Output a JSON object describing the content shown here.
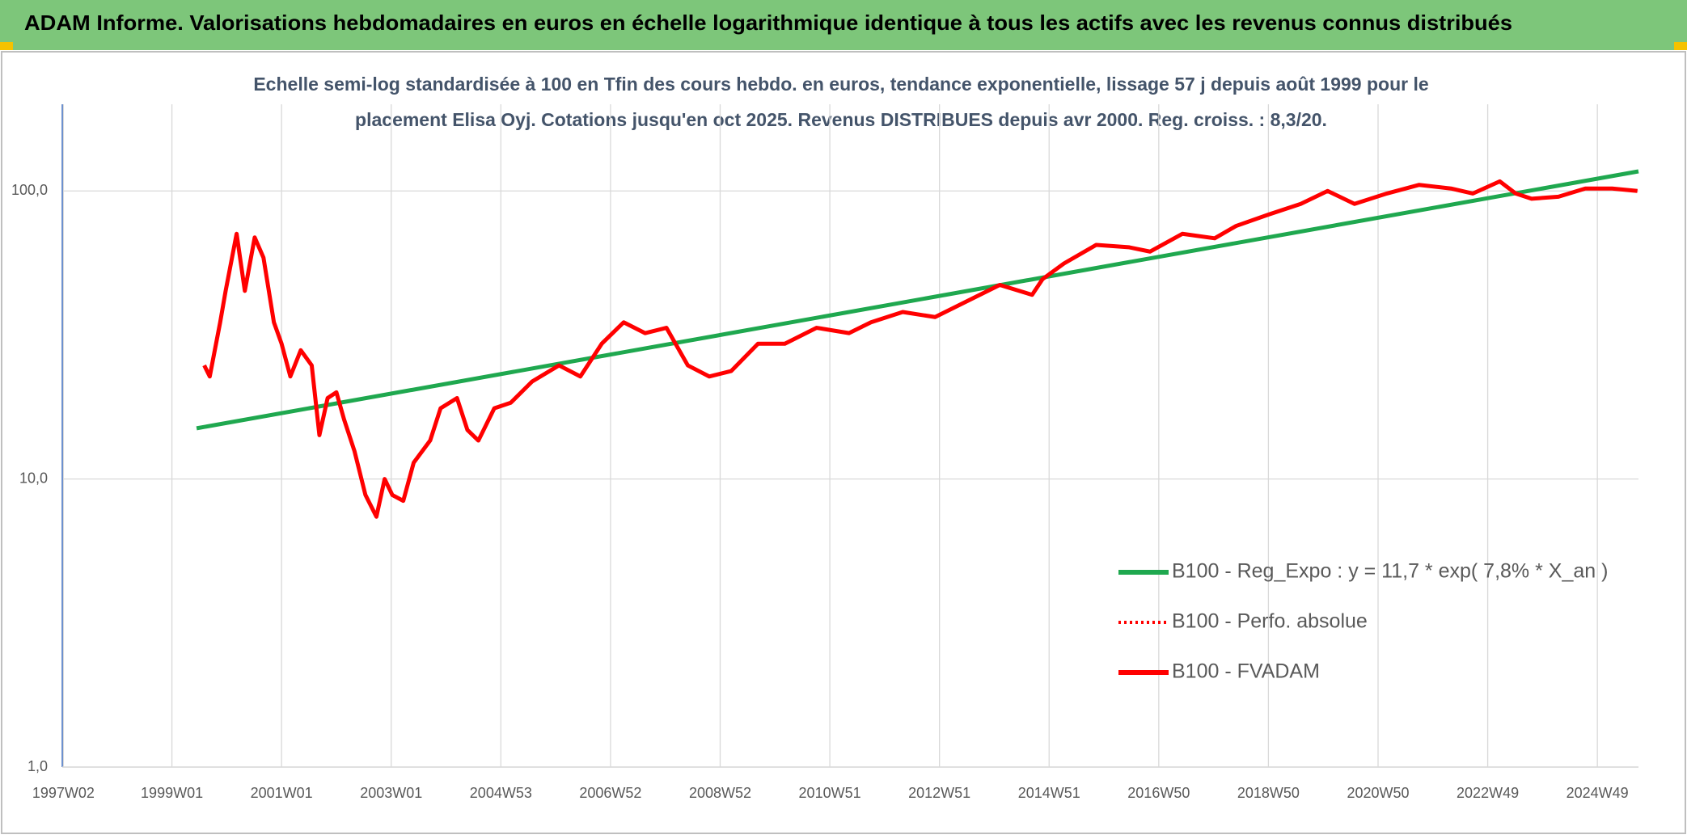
{
  "chart_data": {
    "type": "line",
    "title": "ADAM Informe. Valorisations hebdomadaires en euros en échelle logarithmique identique à tous les actifs avec les revenus connus distribués",
    "subtitle": [
      "Echelle semi-log standardisée à 100 en Tfin des cours hebdo. en euros, tendance exponentielle, lissage 57 j depuis août 1999 pour le",
      "placement Elisa Oyj. Cotations jusqu'en oct 2025. Revenus DISTRIBUES depuis avr 2000. Reg. croiss. : 8,3/20."
    ],
    "xlim": [
      1997,
      2025.75
    ],
    "xticks": [
      {
        "value": 1997.02,
        "label": "1997W02"
      },
      {
        "value": 1999,
        "label": "1999W01"
      },
      {
        "value": 2001,
        "label": "2001W01"
      },
      {
        "value": 2003,
        "label": "2003W01"
      },
      {
        "value": 2005,
        "label": "2004W53"
      },
      {
        "value": 2007,
        "label": "2006W52"
      },
      {
        "value": 2009,
        "label": "2008W52"
      },
      {
        "value": 2011,
        "label": "2010W51"
      },
      {
        "value": 2013,
        "label": "2012W51"
      },
      {
        "value": 2015,
        "label": "2014W51"
      },
      {
        "value": 2017,
        "label": "2016W50"
      },
      {
        "value": 2019,
        "label": "2018W50"
      },
      {
        "value": 2021,
        "label": "2020W50"
      },
      {
        "value": 2023,
        "label": "2022W49"
      },
      {
        "value": 2025,
        "label": "2024W49"
      }
    ],
    "ylim": [
      1,
      200
    ],
    "log_y": true,
    "grid": true,
    "yticks": [
      {
        "value": 1,
        "label": "1,0"
      },
      {
        "value": 10,
        "label": "10,0"
      },
      {
        "value": 100,
        "label": "100,0"
      }
    ],
    "legend": "right",
    "series": [
      {
        "name": "B100 - Reg_Expo : y = 11,7 * exp( 7,8% *  X_an )",
        "color": "#1fa84f",
        "style": "solid",
        "x": [
          1999.45,
          2025.75
        ],
        "values": [
          15,
          117
        ]
      },
      {
        "name": "B100 - Perfo. absolue",
        "color": "#ff0000",
        "style": "dotted",
        "x": [
          1999.59,
          1999.69,
          1999.88,
          1999.98,
          2000.18,
          2000.33,
          2000.51,
          2000.67,
          2000.86,
          2001.0,
          2001.16,
          2001.35,
          2001.55,
          2001.69,
          2001.84,
          2002.0,
          2002.14,
          2002.33,
          2002.53,
          2002.73,
          2002.88,
          2003.02,
          2003.22,
          2003.41,
          2003.71,
          2003.9,
          2004.2,
          2004.39,
          2004.59,
          2004.88,
          2005.18,
          2005.57,
          2006.06,
          2006.45,
          2006.84,
          2007.24,
          2007.63,
          2008.02,
          2008.41,
          2008.8,
          2009.2,
          2009.69,
          2010.18,
          2010.76,
          2011.35,
          2011.75,
          2012.33,
          2012.92,
          2013.51,
          2014.1,
          2014.69,
          2014.88,
          2015.27,
          2015.86,
          2016.45,
          2016.84,
          2017.43,
          2018.02,
          2018.41,
          2019.0,
          2019.59,
          2020.08,
          2020.57,
          2021.16,
          2021.75,
          2022.33,
          2022.73,
          2023.22,
          2023.51,
          2023.8,
          2024.29,
          2024.78,
          2025.27,
          2025.73
        ],
        "values": [
          24.8,
          22.7,
          35,
          45,
          71,
          45,
          69,
          58.7,
          35,
          29.5,
          22.7,
          28,
          24.8,
          14.2,
          19.1,
          20,
          16.1,
          12.5,
          8.8,
          7.4,
          10,
          8.8,
          8.4,
          11.4,
          13.6,
          17.6,
          19.1,
          14.8,
          13.6,
          17.6,
          18.4,
          21.8,
          24.8,
          22.7,
          29.5,
          35,
          32.1,
          33.5,
          24.8,
          22.7,
          23.7,
          29.5,
          29.5,
          33.5,
          32.1,
          35,
          38,
          36.5,
          41.5,
          47.2,
          43.6,
          49.4,
          56,
          65,
          63.8,
          61.6,
          71,
          68.5,
          75.6,
          82.8,
          90.2,
          100,
          90.2,
          98,
          105,
          102,
          98,
          108,
          98,
          94,
          95.5,
          102,
          102,
          100
        ]
      },
      {
        "name": "B100 - FVADAM",
        "color": "#ff0000",
        "style": "solid",
        "x": [
          1999.59,
          1999.69,
          1999.88,
          1999.98,
          2000.18,
          2000.33,
          2000.51,
          2000.67,
          2000.86,
          2001.0,
          2001.16,
          2001.35,
          2001.55,
          2001.69,
          2001.84,
          2002.0,
          2002.14,
          2002.33,
          2002.53,
          2002.73,
          2002.88,
          2003.02,
          2003.22,
          2003.41,
          2003.71,
          2003.9,
          2004.2,
          2004.39,
          2004.59,
          2004.88,
          2005.18,
          2005.57,
          2006.06,
          2006.45,
          2006.84,
          2007.24,
          2007.63,
          2008.02,
          2008.41,
          2008.8,
          2009.2,
          2009.69,
          2010.18,
          2010.76,
          2011.35,
          2011.75,
          2012.33,
          2012.92,
          2013.51,
          2014.1,
          2014.69,
          2014.88,
          2015.27,
          2015.86,
          2016.45,
          2016.84,
          2017.43,
          2018.02,
          2018.41,
          2019.0,
          2019.59,
          2020.08,
          2020.57,
          2021.16,
          2021.75,
          2022.33,
          2022.73,
          2023.22,
          2023.51,
          2023.8,
          2024.29,
          2024.78,
          2025.27,
          2025.73
        ],
        "values": [
          24.8,
          22.7,
          35,
          45,
          71,
          45,
          69,
          58.7,
          35,
          29.5,
          22.7,
          28,
          24.8,
          14.2,
          19.1,
          20,
          16.1,
          12.5,
          8.8,
          7.4,
          10,
          8.8,
          8.4,
          11.4,
          13.6,
          17.6,
          19.1,
          14.8,
          13.6,
          17.6,
          18.4,
          21.8,
          24.8,
          22.7,
          29.5,
          35,
          32.1,
          33.5,
          24.8,
          22.7,
          23.7,
          29.5,
          29.5,
          33.5,
          32.1,
          35,
          38,
          36.5,
          41.5,
          47.2,
          43.6,
          49.4,
          56,
          65,
          63.8,
          61.6,
          71,
          68.5,
          75.6,
          82.8,
          90.2,
          100,
          90.2,
          98,
          105,
          102,
          98,
          108,
          98,
          94,
          95.5,
          102,
          102,
          100
        ]
      }
    ]
  }
}
